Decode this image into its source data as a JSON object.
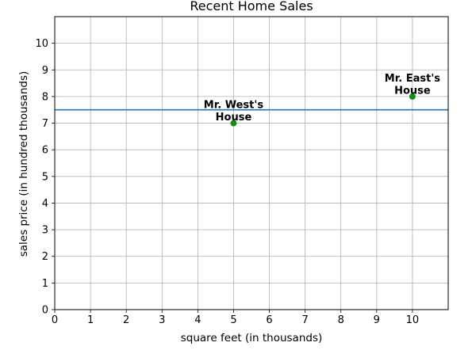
{
  "chart_data": {
    "type": "scatter",
    "title": "Recent Home Sales",
    "xlabel": "square feet (in thousands)",
    "ylabel": "sales price (in hundred thousands)",
    "xlim": [
      0,
      11
    ],
    "ylim": [
      0,
      11
    ],
    "xticks": [
      0,
      1,
      2,
      3,
      4,
      5,
      6,
      7,
      8,
      9,
      10
    ],
    "yticks": [
      0,
      1,
      2,
      3,
      4,
      5,
      6,
      7,
      8,
      9,
      10
    ],
    "grid": true,
    "points": [
      {
        "x": 5,
        "y": 7,
        "label": [
          "Mr. West's",
          "House"
        ]
      },
      {
        "x": 10,
        "y": 8,
        "label": [
          "Mr. East's",
          "House"
        ]
      }
    ],
    "hline": {
      "y": 7.5
    },
    "colors": {
      "point": "#128c12",
      "line": "#1f77b4"
    }
  }
}
